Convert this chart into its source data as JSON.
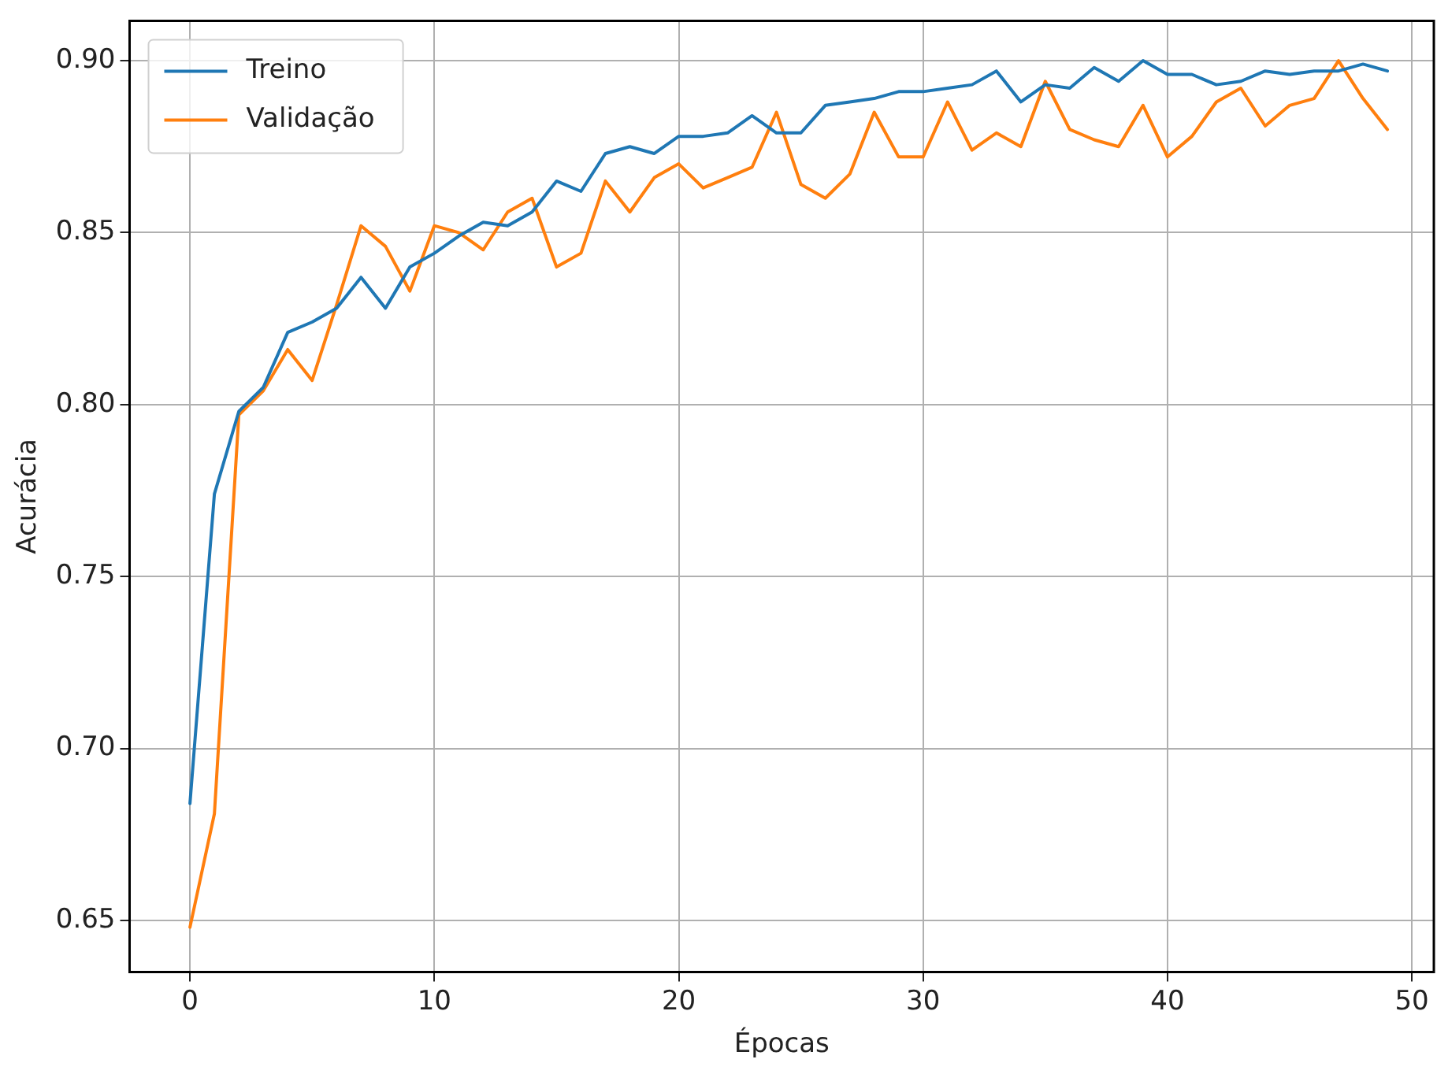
{
  "chart_data": {
    "type": "line",
    "xlabel": "Épocas",
    "ylabel": "Acurácia",
    "x": [
      0,
      1,
      2,
      3,
      4,
      5,
      6,
      7,
      8,
      9,
      10,
      11,
      12,
      13,
      14,
      15,
      16,
      17,
      18,
      19,
      20,
      21,
      22,
      23,
      24,
      25,
      26,
      27,
      28,
      29,
      30,
      31,
      32,
      33,
      34,
      35,
      36,
      37,
      38,
      39,
      40,
      41,
      42,
      43,
      44,
      45,
      46,
      47,
      48,
      49
    ],
    "series": [
      {
        "name": "Treino",
        "color": "#1f77b4",
        "values": [
          0.684,
          0.774,
          0.798,
          0.805,
          0.821,
          0.824,
          0.828,
          0.837,
          0.828,
          0.84,
          0.844,
          0.849,
          0.853,
          0.852,
          0.856,
          0.865,
          0.862,
          0.873,
          0.875,
          0.873,
          0.878,
          0.878,
          0.879,
          0.884,
          0.879,
          0.879,
          0.887,
          0.888,
          0.889,
          0.891,
          0.891,
          0.892,
          0.893,
          0.897,
          0.888,
          0.893,
          0.892,
          0.898,
          0.894,
          0.9,
          0.896,
          0.896,
          0.893,
          0.894,
          0.897,
          0.896,
          0.897,
          0.897,
          0.899,
          0.897
        ]
      },
      {
        "name": "Validação",
        "color": "#ff7f0e",
        "values": [
          0.648,
          0.681,
          0.797,
          0.804,
          0.816,
          0.807,
          0.829,
          0.852,
          0.846,
          0.833,
          0.852,
          0.85,
          0.845,
          0.856,
          0.86,
          0.84,
          0.844,
          0.865,
          0.856,
          0.866,
          0.87,
          0.863,
          0.866,
          0.869,
          0.885,
          0.864,
          0.86,
          0.867,
          0.885,
          0.872,
          0.872,
          0.888,
          0.874,
          0.879,
          0.875,
          0.894,
          0.88,
          0.877,
          0.875,
          0.887,
          0.872,
          0.878,
          0.888,
          0.892,
          0.881,
          0.887,
          0.889,
          0.9,
          0.889,
          0.88
        ]
      }
    ],
    "xlim": [
      -2.47,
      50.9
    ],
    "xticks": [
      0,
      10,
      20,
      30,
      40,
      50
    ],
    "ylim": [
      0.635,
      0.9116
    ],
    "yticks": [
      {
        "value": 0.65,
        "label": "0.65"
      },
      {
        "value": 0.7,
        "label": "0.70"
      },
      {
        "value": 0.75,
        "label": "0.75"
      },
      {
        "value": 0.8,
        "label": "0.80"
      },
      {
        "value": 0.85,
        "label": "0.85"
      },
      {
        "value": 0.9,
        "label": "0.90"
      }
    ],
    "grid": true,
    "legend": "top left",
    "marker": "none",
    "line_style": "solid"
  }
}
